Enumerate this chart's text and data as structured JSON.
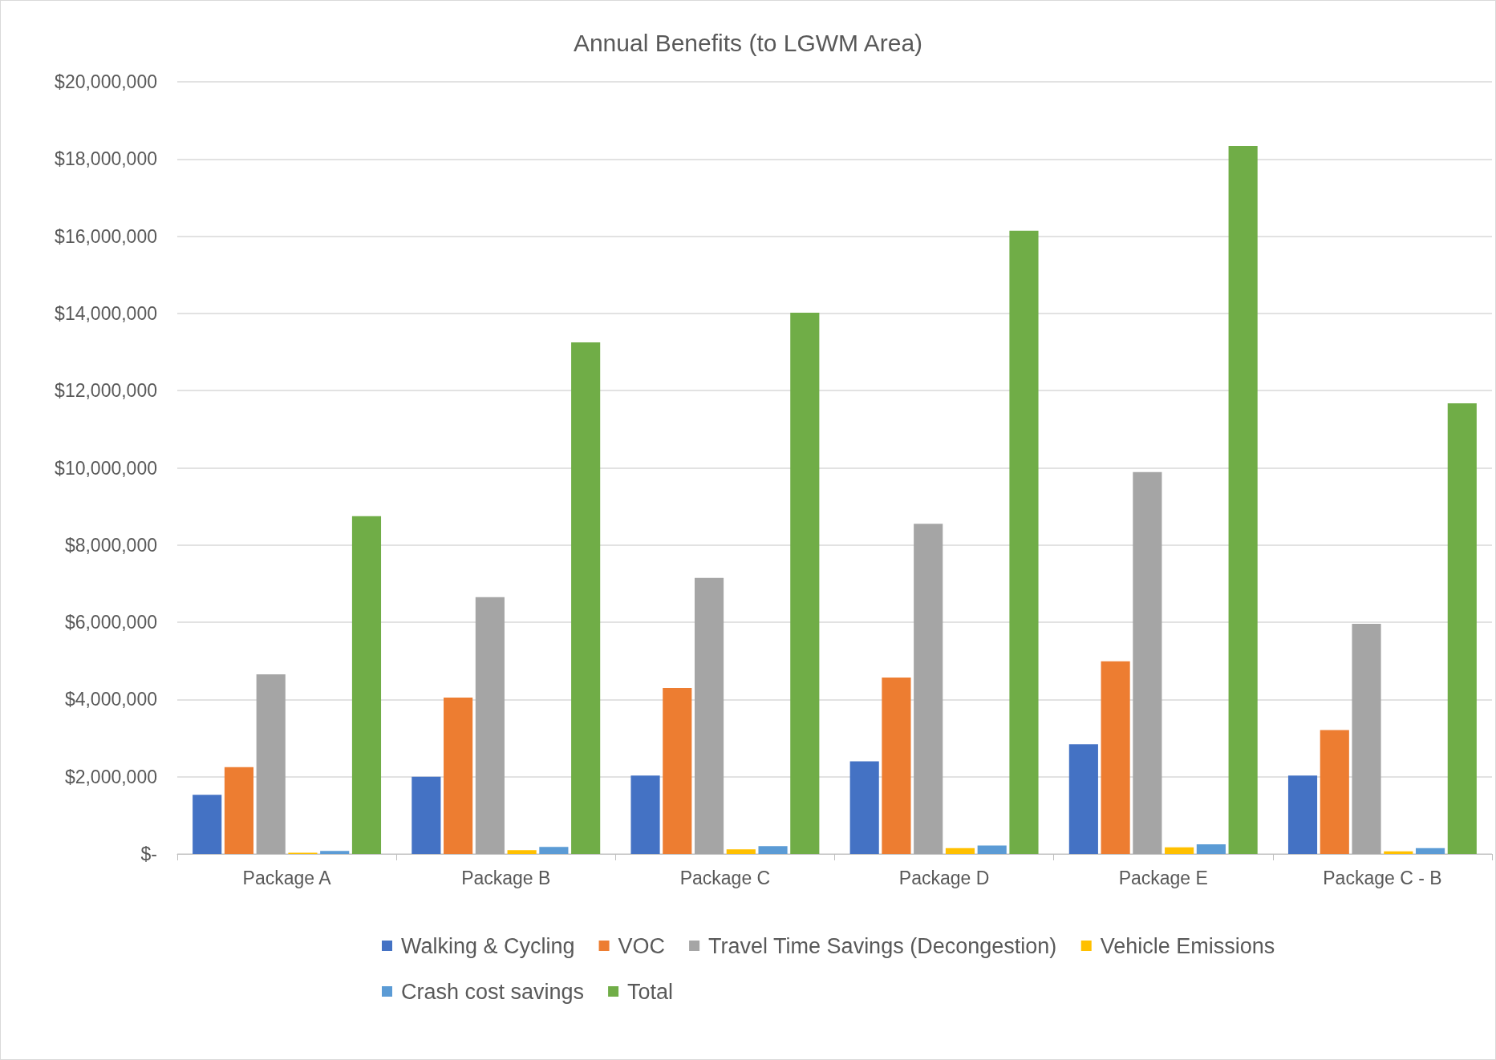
{
  "chart_data": {
    "type": "bar",
    "title": "Annual Benefits (to LGWM Area)",
    "categories": [
      "Package A",
      "Package B",
      "Package C",
      "Package D",
      "Package E",
      "Package C - B"
    ],
    "series": [
      {
        "name": "Walking & Cycling",
        "color": "#4472c4",
        "values": [
          1530000,
          2000000,
          2030000,
          2400000,
          2840000,
          2030000
        ]
      },
      {
        "name": "VOC",
        "color": "#ed7d31",
        "values": [
          2250000,
          4050000,
          4300000,
          4570000,
          4990000,
          3210000
        ]
      },
      {
        "name": "Travel Time Savings (Decongestion)",
        "color": "#a5a5a5",
        "values": [
          4650000,
          6650000,
          7150000,
          8550000,
          9890000,
          5960000
        ]
      },
      {
        "name": "Vehicle Emissions",
        "color": "#ffc000",
        "values": [
          30000,
          100000,
          120000,
          150000,
          170000,
          70000
        ]
      },
      {
        "name": "Crash cost savings",
        "color": "#5b9bd5",
        "values": [
          80000,
          180000,
          200000,
          220000,
          250000,
          150000
        ]
      },
      {
        "name": "Total",
        "color": "#70ad47",
        "values": [
          8750000,
          13250000,
          14020000,
          16140000,
          18340000,
          11670000
        ]
      }
    ],
    "ylim": [
      0,
      20000000
    ],
    "yticks": [
      {
        "value": 0,
        "label": "$-"
      },
      {
        "value": 2000000,
        "label": "$2,000,000"
      },
      {
        "value": 4000000,
        "label": "$4,000,000"
      },
      {
        "value": 6000000,
        "label": "$6,000,000"
      },
      {
        "value": 8000000,
        "label": "$8,000,000"
      },
      {
        "value": 10000000,
        "label": "$10,000,000"
      },
      {
        "value": 12000000,
        "label": "$12,000,000"
      },
      {
        "value": 14000000,
        "label": "$14,000,000"
      },
      {
        "value": 16000000,
        "label": "$16,000,000"
      },
      {
        "value": 18000000,
        "label": "$18,000,000"
      },
      {
        "value": 20000000,
        "label": "$20,000,000"
      }
    ],
    "grid": "y",
    "legend": "bottom"
  }
}
